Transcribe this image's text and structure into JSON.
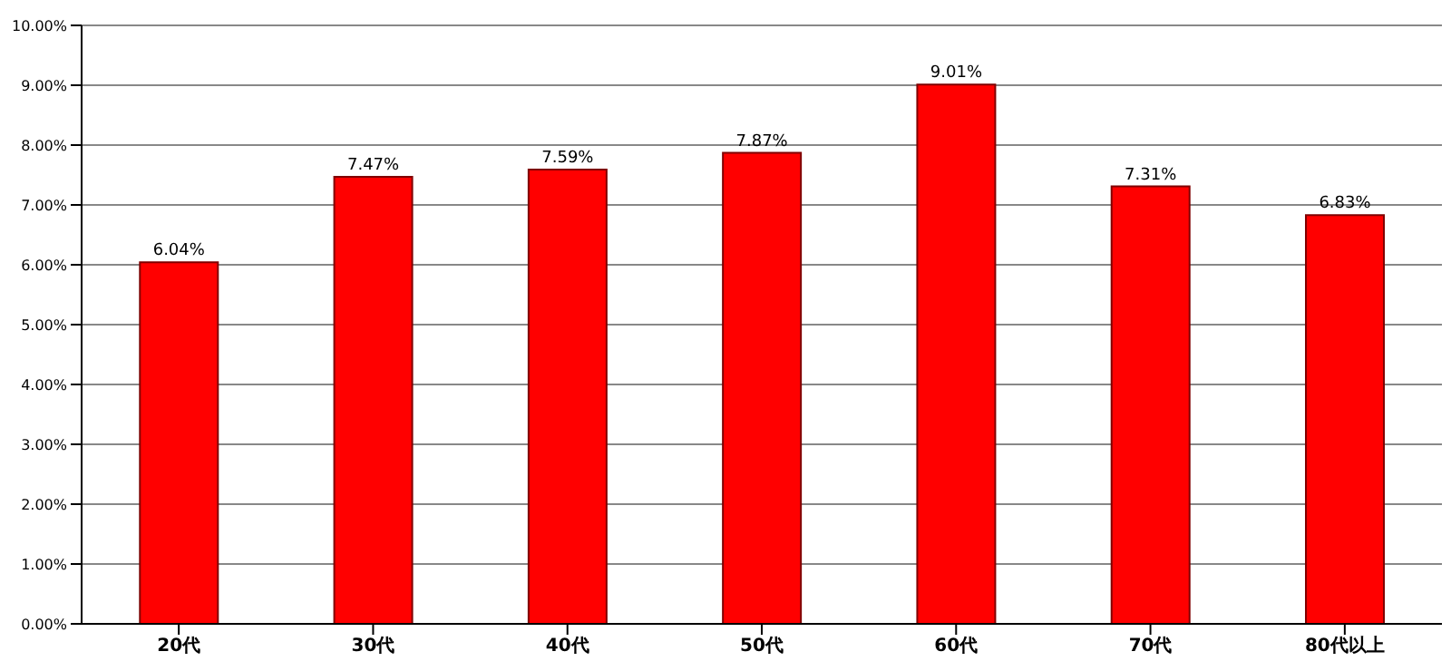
{
  "chart_data": {
    "type": "bar",
    "categories": [
      "20代",
      "30代",
      "40代",
      "50代",
      "60代",
      "70代",
      "80代以上"
    ],
    "values": [
      6.04,
      7.47,
      7.59,
      7.87,
      9.01,
      7.31,
      6.83
    ],
    "value_labels": [
      "6.04%",
      "7.47%",
      "7.59%",
      "7.87%",
      "9.01%",
      "7.31%",
      "6.83%"
    ],
    "color": "#ff0000",
    "ylim": [
      0,
      10
    ],
    "yticks": [
      {
        "value": 0,
        "label": "0.00%"
      },
      {
        "value": 1,
        "label": "1.00%"
      },
      {
        "value": 2,
        "label": "2.00%"
      },
      {
        "value": 3,
        "label": "3.00%"
      },
      {
        "value": 4,
        "label": "4.00%"
      },
      {
        "value": 5,
        "label": "5.00%"
      },
      {
        "value": 6,
        "label": "6.00%"
      },
      {
        "value": 7,
        "label": "7.00%"
      },
      {
        "value": 8,
        "label": "8.00%"
      },
      {
        "value": 9,
        "label": "9.00%"
      },
      {
        "value": 10,
        "label": "10.00%"
      }
    ],
    "grid": "y",
    "legend": false
  }
}
